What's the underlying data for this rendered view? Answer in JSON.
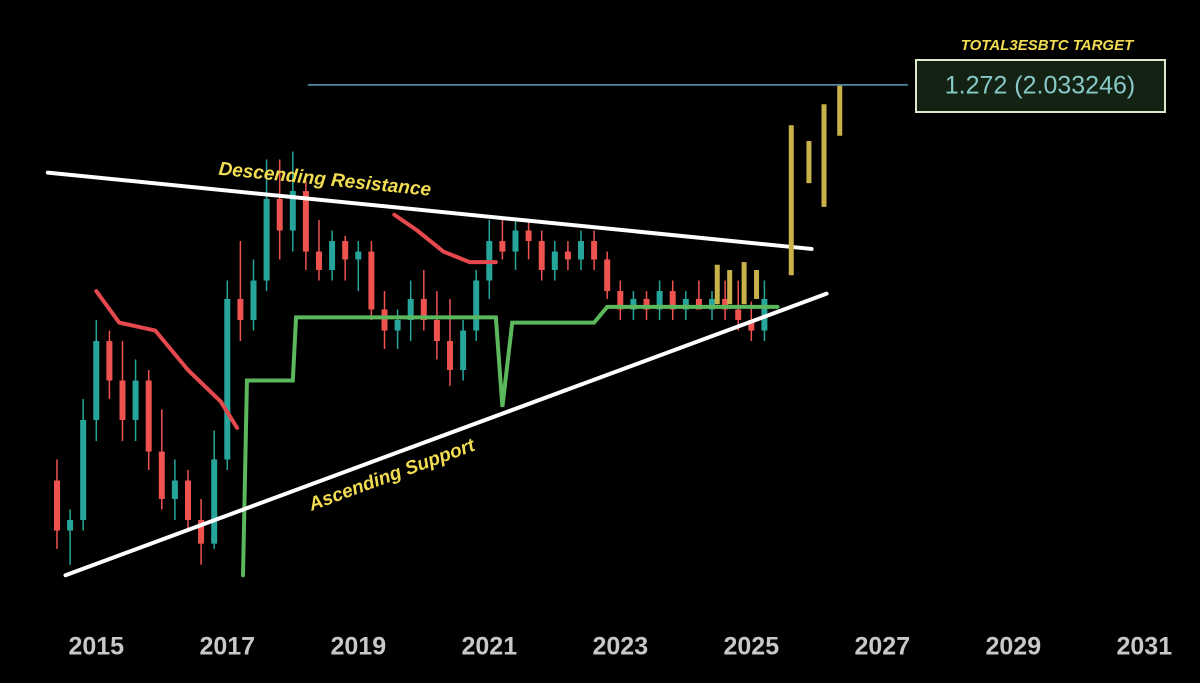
{
  "chart_data": {
    "type": "candlestick",
    "xlim": [
      2013.53,
      2031.85
    ],
    "ylim": [
      0,
      2.356
    ],
    "xticks": [
      2015,
      2017,
      2019,
      2021,
      2023,
      2025,
      2027,
      2029,
      2031
    ],
    "up_color": "#26a69a",
    "down_color": "#ef5350",
    "x": [
      2014.4,
      2014.6,
      2014.8,
      2015.0,
      2015.2,
      2015.4,
      2015.6,
      2015.8,
      2016.0,
      2016.2,
      2016.4,
      2016.6,
      2016.8,
      2017.0,
      2017.2,
      2017.4,
      2017.6,
      2017.8,
      2018.0,
      2018.2,
      2018.4,
      2018.6,
      2018.8,
      2019.0,
      2019.2,
      2019.4,
      2019.6,
      2019.8,
      2020.0,
      2020.2,
      2020.4,
      2020.6,
      2020.8,
      2021.0,
      2021.2,
      2021.4,
      2021.6,
      2021.8,
      2022.0,
      2022.2,
      2022.4,
      2022.6,
      2022.8,
      2023.0,
      2023.2,
      2023.4,
      2023.6,
      2023.8,
      2024.0,
      2024.2,
      2024.4,
      2024.6,
      2024.8,
      2025.0,
      2025.2
    ],
    "open": [
      0.53,
      0.34,
      0.38,
      0.76,
      1.06,
      0.91,
      0.76,
      0.91,
      0.64,
      0.46,
      0.53,
      0.38,
      0.29,
      0.61,
      1.22,
      1.14,
      1.29,
      1.6,
      1.48,
      1.63,
      1.4,
      1.33,
      1.44,
      1.37,
      1.4,
      1.18,
      1.1,
      1.14,
      1.22,
      1.14,
      1.06,
      0.95,
      1.1,
      1.29,
      1.44,
      1.4,
      1.48,
      1.44,
      1.33,
      1.4,
      1.37,
      1.44,
      1.37,
      1.25,
      1.18,
      1.22,
      1.18,
      1.25,
      1.18,
      1.22,
      1.18,
      1.22,
      1.18,
      1.14,
      1.1
    ],
    "high": [
      0.61,
      0.42,
      0.84,
      1.14,
      1.1,
      1.06,
      0.99,
      0.95,
      0.8,
      0.61,
      0.57,
      0.46,
      0.72,
      1.29,
      1.44,
      1.37,
      1.75,
      1.75,
      1.78,
      1.67,
      1.52,
      1.48,
      1.46,
      1.44,
      1.44,
      1.25,
      1.18,
      1.29,
      1.33,
      1.25,
      1.22,
      1.14,
      1.33,
      1.52,
      1.52,
      1.52,
      1.52,
      1.48,
      1.44,
      1.44,
      1.48,
      1.48,
      1.4,
      1.29,
      1.25,
      1.25,
      1.29,
      1.29,
      1.25,
      1.29,
      1.25,
      1.29,
      1.29,
      1.21,
      1.29
    ],
    "low": [
      0.27,
      0.21,
      0.34,
      0.68,
      0.84,
      0.68,
      0.68,
      0.57,
      0.42,
      0.38,
      0.34,
      0.21,
      0.27,
      0.57,
      1.06,
      1.1,
      1.25,
      1.37,
      1.4,
      1.33,
      1.29,
      1.29,
      1.29,
      1.25,
      1.14,
      1.03,
      1.03,
      1.06,
      1.1,
      0.99,
      0.89,
      0.91,
      1.06,
      1.22,
      1.37,
      1.33,
      1.37,
      1.29,
      1.29,
      1.33,
      1.33,
      1.33,
      1.22,
      1.14,
      1.14,
      1.14,
      1.14,
      1.14,
      1.14,
      1.18,
      1.14,
      1.14,
      1.1,
      1.06,
      1.06
    ],
    "close": [
      0.34,
      0.38,
      0.76,
      1.06,
      0.91,
      0.76,
      0.91,
      0.64,
      0.46,
      0.53,
      0.38,
      0.29,
      0.61,
      1.22,
      1.14,
      1.29,
      1.6,
      1.48,
      1.63,
      1.4,
      1.33,
      1.44,
      1.37,
      1.4,
      1.18,
      1.1,
      1.14,
      1.22,
      1.14,
      1.06,
      0.95,
      1.1,
      1.29,
      1.44,
      1.4,
      1.48,
      1.44,
      1.33,
      1.4,
      1.37,
      1.44,
      1.37,
      1.25,
      1.18,
      1.22,
      1.18,
      1.25,
      1.18,
      1.22,
      1.18,
      1.22,
      1.18,
      1.14,
      1.1,
      1.22
    ],
    "lines": [
      {
        "color": "#e5484d",
        "width": 4,
        "x": [
          2015.0,
          2015.35,
          2015.9,
          2016.4,
          2016.9,
          2017.15
        ],
        "y": [
          1.25,
          1.13,
          1.1,
          0.95,
          0.83,
          0.73
        ]
      },
      {
        "color": "#e5484d",
        "width": 4,
        "x": [
          2019.55,
          2019.9,
          2020.3,
          2020.7,
          2021.1
        ],
        "y": [
          1.54,
          1.48,
          1.4,
          1.36,
          1.36
        ]
      },
      {
        "color": "#5cb85c",
        "width": 4,
        "x": [
          2017.24,
          2017.3,
          2018.0,
          2018.05,
          2021.1,
          2021.2,
          2021.35,
          2022.6,
          2022.8,
          2025.4
        ],
        "y": [
          0.17,
          0.91,
          0.91,
          1.15,
          1.15,
          0.81,
          1.13,
          1.13,
          1.19,
          1.19
        ]
      },
      {
        "color": "#ffffff",
        "width": 4,
        "x": [
          2014.26,
          2025.92
        ],
        "y": [
          1.7,
          1.41
        ],
        "label": "Descending Resistance",
        "label_at": 0.36,
        "label_side": -1
      },
      {
        "color": "#ffffff",
        "width": 4,
        "x": [
          2014.53,
          2026.15
        ],
        "y": [
          0.17,
          1.24
        ],
        "label": "Ascending Support",
        "label_at": 0.42,
        "label_side": 1
      }
    ],
    "projection": {
      "color": "#c9b24a",
      "x": [
        2024.48,
        2024.67,
        2024.89,
        2025.08,
        2025.61,
        2025.88,
        2026.11,
        2026.35
      ],
      "low": [
        1.2,
        1.2,
        1.2,
        1.22,
        1.31,
        1.66,
        1.57,
        1.84
      ],
      "high": [
        1.35,
        1.33,
        1.36,
        1.33,
        1.88,
        1.82,
        1.96,
        2.03
      ]
    },
    "target": {
      "title": "TOTAL3ESBTC TARGET",
      "value": 2.033246,
      "label": "1.272 (2.033246)",
      "color": "#5a9fc0",
      "x": [
        2018.23,
        2027.39
      ]
    }
  }
}
